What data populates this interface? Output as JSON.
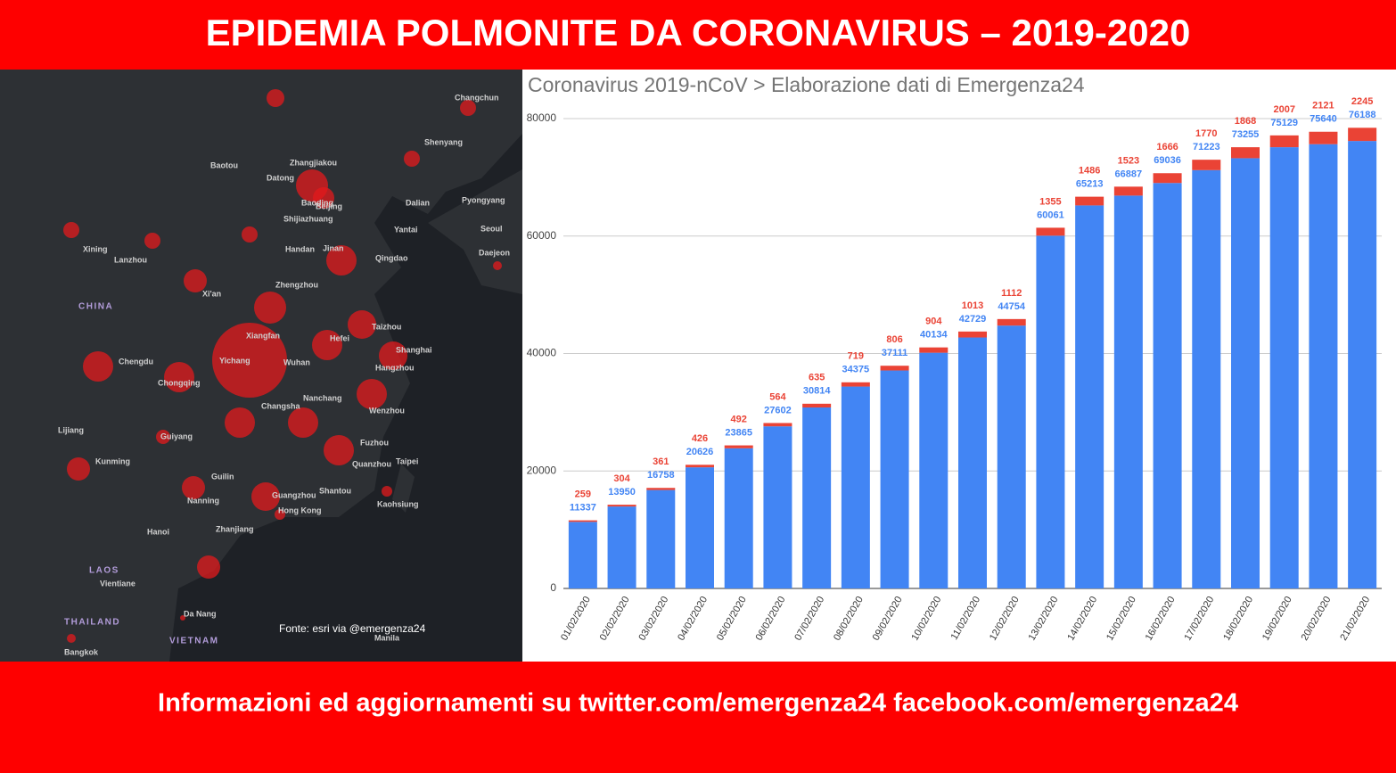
{
  "header": {
    "title": "EPIDEMIA POLMONITE DA CORONAVIRUS – 2019-2020"
  },
  "map": {
    "places": [
      "Changchun",
      "Shenyang",
      "Baotou",
      "Zhangjiakou",
      "Datong",
      "Beijing",
      "Baoding",
      "Dalian",
      "Pyongyang",
      "Shijiazhuang",
      "Yantai",
      "Seoul",
      "Daejeon",
      "Xining",
      "Lanzhou",
      "Handan",
      "Jinan",
      "Qingdao",
      "Zhengzhou",
      "Xi'an",
      "CHINA",
      "Xiangfan",
      "Taizhou",
      "Chengdu",
      "Hefei",
      "Shanghai",
      "Yichang",
      "Wuhan",
      "Chongqing",
      "Hangzhou",
      "Nanchang",
      "Changsha",
      "Wenzhou",
      "Lijiang",
      "Guiyang",
      "Fuzhou",
      "Kunming",
      "Quanzhou",
      "Taipei",
      "Guilin",
      "Nanning",
      "Guangzhou",
      "Shantou",
      "Kaohsiung",
      "Hong Kong",
      "Hanoi",
      "Zhanjiang",
      "LAOS",
      "Vientiane",
      "THAILAND",
      "Da Nang",
      "Bangkok",
      "VIETNAM",
      "Manila"
    ],
    "source": "Fonte: esri via @emergenza24"
  },
  "chart_data": {
    "type": "bar",
    "stacked": true,
    "title": "Coronavirus 2019-nCoV > Elaborazione dati di Emergenza24",
    "categories": [
      "01/02/2020",
      "02/02/2020",
      "03/02/2020",
      "04/02/2020",
      "05/02/2020",
      "06/02/2020",
      "07/02/2020",
      "08/02/2020",
      "09/02/2020",
      "10/02/2020",
      "11/02/2020",
      "12/02/2020",
      "13/02/2020",
      "14/02/2020",
      "15/02/2020",
      "16/02/2020",
      "17/02/2020",
      "18/02/2020",
      "19/02/2020",
      "20/02/2020",
      "21/02/2020"
    ],
    "series": [
      {
        "color": "#4285f4",
        "values": [
          11337,
          13950,
          16758,
          20626,
          23865,
          27602,
          30814,
          34375,
          37111,
          40134,
          42729,
          44754,
          60061,
          65213,
          66887,
          69036,
          71223,
          73255,
          75129,
          75640,
          76188
        ]
      },
      {
        "color": "#ea4335",
        "values": [
          259,
          304,
          361,
          426,
          492,
          564,
          635,
          719,
          806,
          904,
          1013,
          1112,
          1355,
          1486,
          1523,
          1666,
          1770,
          1868,
          2007,
          2121,
          2245
        ]
      }
    ],
    "ylim": [
      0,
      80000
    ],
    "yticks": [
      0,
      20000,
      40000,
      60000,
      80000
    ],
    "grid": true
  },
  "footer": {
    "text": "Informazioni ed aggiornamenti su twitter.com/emergenza24  facebook.com/emergenza24"
  }
}
